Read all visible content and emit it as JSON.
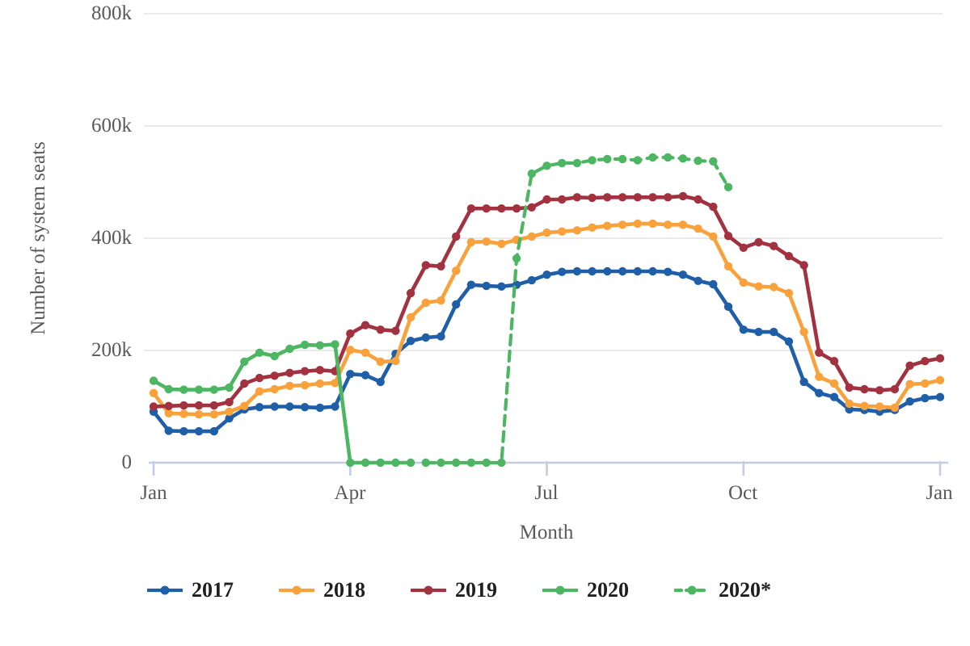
{
  "chart_data": {
    "type": "line",
    "title": "",
    "xlabel": "Month",
    "ylabel": "Number of system seats",
    "grid": "horizontal",
    "legend_position": "bottom",
    "x_axis": {
      "unit": "week of year (Jan through following Jan)",
      "ticks": [
        {
          "week": 0,
          "label": "Jan"
        },
        {
          "week": 13,
          "label": "Apr"
        },
        {
          "week": 26,
          "label": "Jul"
        },
        {
          "week": 39,
          "label": "Oct"
        },
        {
          "week": 52,
          "label": "Jan"
        }
      ],
      "range_weeks": [
        0,
        52
      ]
    },
    "y_axis": {
      "unit": "seats",
      "range": [
        0,
        800000
      ],
      "ticks": [
        {
          "value": 0,
          "label": "0"
        },
        {
          "value": 200000,
          "label": "200k"
        },
        {
          "value": 400000,
          "label": "400k"
        },
        {
          "value": 600000,
          "label": "600k"
        },
        {
          "value": 800000,
          "label": "800k"
        }
      ]
    },
    "colors": {
      "grid": "#E2E2E2",
      "axis": "#C3CCE6",
      "tick_text": "#595959",
      "axis_title_text": "#595959",
      "legend_text": "#1F1F1F"
    },
    "series": [
      {
        "name": "2017",
        "color": "#1F5FA8",
        "dashed": false,
        "start_week": 0,
        "values": [
          91000,
          57000,
          56000,
          56000,
          56000,
          79000,
          95000,
          99000,
          100000,
          100000,
          99000,
          98000,
          100000,
          158000,
          156000,
          144000,
          194000,
          217000,
          223000,
          225000,
          282000,
          317000,
          315000,
          314000,
          317000,
          325000,
          335000,
          340000,
          341000,
          341000,
          341000,
          341000,
          341000,
          341000,
          340000,
          335000,
          324000,
          318000,
          278000,
          237000,
          233000,
          233000,
          216000,
          144000,
          124000,
          117000,
          95000,
          94000,
          91000,
          94000,
          109000,
          115000,
          117000
        ]
      },
      {
        "name": "2018",
        "color": "#F9A23C",
        "dashed": false,
        "start_week": 0,
        "values": [
          124000,
          88000,
          87000,
          86000,
          86000,
          91000,
          101000,
          127000,
          131000,
          137000,
          138000,
          141000,
          142000,
          201000,
          196000,
          180000,
          181000,
          259000,
          285000,
          289000,
          342000,
          393000,
          394000,
          390000,
          397000,
          403000,
          410000,
          412000,
          414000,
          419000,
          422000,
          424000,
          426000,
          426000,
          424000,
          424000,
          417000,
          403000,
          350000,
          321000,
          314000,
          313000,
          302000,
          233000,
          153000,
          141000,
          105000,
          101000,
          100000,
          98000,
          140000,
          141000,
          147000
        ]
      },
      {
        "name": "2019",
        "color": "#A23240",
        "dashed": false,
        "start_week": 0,
        "values": [
          100000,
          101000,
          102000,
          102000,
          102000,
          108000,
          141000,
          151000,
          155000,
          160000,
          163000,
          165000,
          163000,
          230000,
          245000,
          237000,
          235000,
          302000,
          352000,
          350000,
          403000,
          453000,
          453000,
          453000,
          453000,
          455000,
          469000,
          469000,
          473000,
          472000,
          473000,
          473000,
          473000,
          473000,
          473000,
          475000,
          469000,
          456000,
          404000,
          383000,
          393000,
          386000,
          368000,
          352000,
          196000,
          181000,
          134000,
          131000,
          129000,
          131000,
          173000,
          181000,
          186000
        ]
      },
      {
        "name": "2020",
        "color": "#4DB663",
        "dashed": false,
        "start_week": 0,
        "values": [
          146000,
          131000,
          130000,
          130000,
          130000,
          134000,
          180000,
          196000,
          190000,
          203000,
          210000,
          209000,
          211000,
          0,
          0,
          0,
          0,
          0
        ]
      },
      {
        "name": "2020*",
        "color": "#4DB663",
        "dashed": true,
        "start_week": 18,
        "values": [
          0,
          0,
          0,
          0,
          0,
          0,
          364000,
          515000,
          529000,
          534000,
          534000,
          539000,
          541000,
          541000,
          539000,
          544000,
          544000,
          542000,
          538000,
          537000,
          491000
        ]
      }
    ]
  }
}
